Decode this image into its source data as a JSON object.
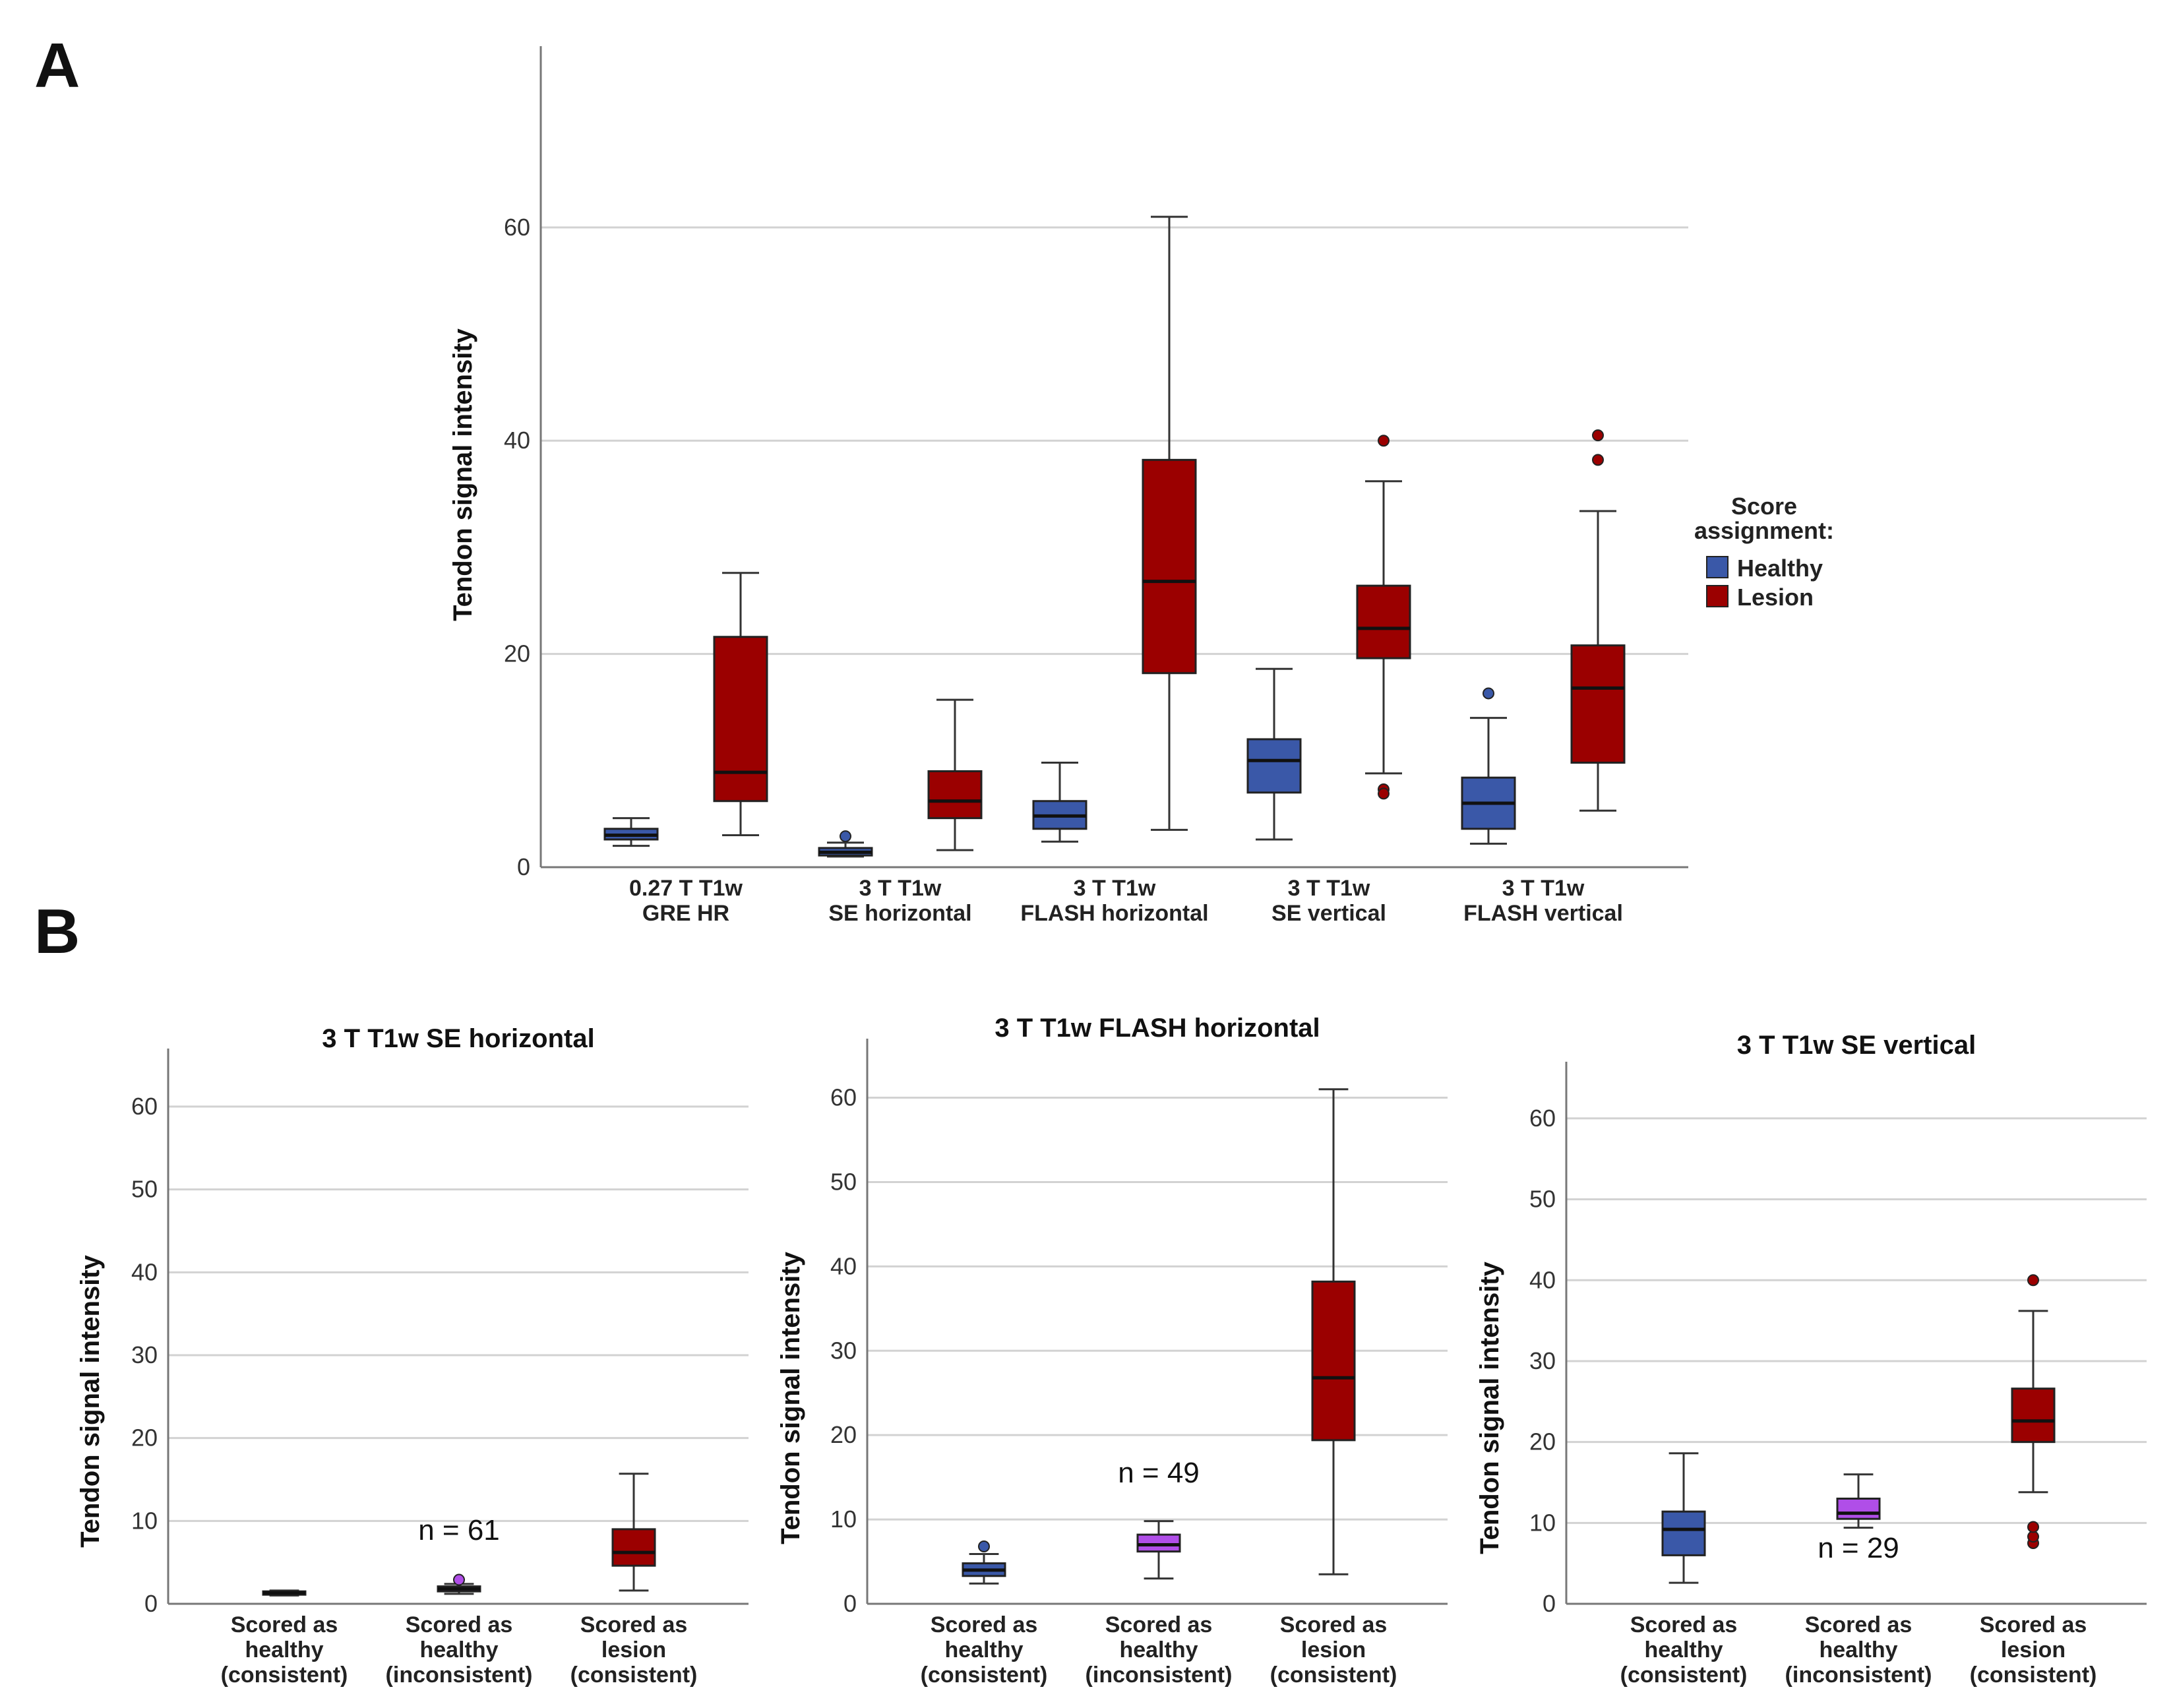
{
  "labels": {
    "panel_a": "A",
    "panel_b": "B"
  },
  "colors": {
    "healthy": "#3a58a8",
    "lesion": "#9b0000",
    "inconsistent": "#b04ee8"
  },
  "legend": {
    "title_line1": "Score",
    "title_line2": "assignment:",
    "healthy": "Healthy",
    "lesion": "Lesion"
  },
  "chart_data": [
    {
      "type": "boxplot",
      "id": "A",
      "title": "",
      "xlabel": "",
      "ylabel": "Tendon signal intensity",
      "ylim": [
        0,
        77
      ],
      "yticks": [
        0,
        20,
        40,
        60
      ],
      "grid": true,
      "legend_position": "right",
      "categories": [
        [
          "0.27 T T1w",
          "GRE HR"
        ],
        [
          "3 T T1w",
          "SE horizontal"
        ],
        [
          "3 T T1w",
          "FLASH horizontal"
        ],
        [
          "3 T T1w",
          "SE vertical"
        ],
        [
          "3 T T1w",
          "FLASH vertical"
        ]
      ],
      "series": [
        {
          "name": "Healthy",
          "color_key": "healthy",
          "boxes": [
            {
              "min": 2.0,
              "q1": 2.6,
              "median": 3.0,
              "q3": 3.6,
              "max": 4.6,
              "outliers": []
            },
            {
              "min": 1.0,
              "q1": 1.1,
              "median": 1.4,
              "q3": 1.8,
              "max": 2.3,
              "outliers": [
                2.9
              ]
            },
            {
              "min": 2.4,
              "q1": 3.6,
              "median": 4.8,
              "q3": 6.2,
              "max": 9.8,
              "outliers": []
            },
            {
              "min": 2.6,
              "q1": 7.0,
              "median": 10.0,
              "q3": 12.0,
              "max": 18.6,
              "outliers": []
            },
            {
              "min": 2.2,
              "q1": 3.6,
              "median": 6.0,
              "q3": 8.4,
              "max": 14.0,
              "outliers": [
                16.3
              ]
            }
          ]
        },
        {
          "name": "Lesion",
          "color_key": "lesion",
          "boxes": [
            {
              "min": 3.0,
              "q1": 6.2,
              "median": 8.9,
              "q3": 21.6,
              "max": 27.6,
              "outliers": []
            },
            {
              "min": 1.6,
              "q1": 4.6,
              "median": 6.2,
              "q3": 9.0,
              "max": 15.7,
              "outliers": []
            },
            {
              "min": 3.5,
              "q1": 18.2,
              "median": 26.8,
              "q3": 38.2,
              "max": 61.0,
              "outliers": []
            },
            {
              "min": 8.8,
              "q1": 19.6,
              "median": 22.4,
              "q3": 26.4,
              "max": 36.2,
              "outliers": [
                7.3,
                6.9,
                40.0
              ]
            },
            {
              "min": 5.3,
              "q1": 9.8,
              "median": 16.8,
              "q3": 20.8,
              "max": 33.4,
              "outliers": [
                38.2,
                40.5
              ]
            }
          ]
        }
      ]
    },
    {
      "type": "boxplot",
      "id": "B1",
      "title": "3 T T1w SE horizontal",
      "xlabel": "",
      "ylabel": "Tendon signal intensity",
      "ylim": [
        0,
        67
      ],
      "yticks": [
        0,
        10,
        20,
        30,
        40,
        50,
        60
      ],
      "grid": true,
      "annotation": {
        "text": "n = 61",
        "x_index": 1,
        "y": 7.7
      },
      "categories": [
        [
          "Scored as",
          "healthy",
          "(consistent)"
        ],
        [
          "Scored as",
          "healthy",
          "(inconsistent)"
        ],
        [
          "Scored as",
          "lesion",
          "(consistent)"
        ]
      ],
      "boxes": [
        {
          "color_key": "healthy",
          "min": 1.0,
          "q1": 1.1,
          "median": 1.3,
          "q3": 1.5,
          "max": 1.6,
          "outliers": []
        },
        {
          "color_key": "inconsistent",
          "min": 1.2,
          "q1": 1.5,
          "median": 1.8,
          "q3": 2.1,
          "max": 2.4,
          "outliers": [
            2.9
          ]
        },
        {
          "color_key": "lesion",
          "min": 1.6,
          "q1": 4.6,
          "median": 6.2,
          "q3": 9.0,
          "max": 15.7,
          "outliers": []
        }
      ]
    },
    {
      "type": "boxplot",
      "id": "B2",
      "title": "3 T T1w FLASH horizontal",
      "xlabel": "",
      "ylabel": "Tendon signal intensity",
      "ylim": [
        0,
        67
      ],
      "yticks": [
        0,
        10,
        20,
        30,
        40,
        50,
        60
      ],
      "grid": true,
      "annotation": {
        "text": "n = 49",
        "x_index": 1,
        "y": 14.4
      },
      "categories": [
        [
          "Scored as",
          "healthy",
          "(consistent)"
        ],
        [
          "Scored as",
          "healthy",
          "(inconsistent)"
        ],
        [
          "Scored as",
          "lesion",
          "(consistent)"
        ]
      ],
      "boxes": [
        {
          "color_key": "healthy",
          "min": 2.4,
          "q1": 3.3,
          "median": 4.0,
          "q3": 4.8,
          "max": 5.9,
          "outliers": [
            6.8
          ]
        },
        {
          "color_key": "inconsistent",
          "min": 3.0,
          "q1": 6.2,
          "median": 7.0,
          "q3": 8.2,
          "max": 9.8,
          "outliers": []
        },
        {
          "color_key": "lesion",
          "min": 3.5,
          "q1": 19.4,
          "median": 26.8,
          "q3": 38.2,
          "max": 61.0,
          "outliers": []
        }
      ]
    },
    {
      "type": "boxplot",
      "id": "B3",
      "title": "3 T T1w SE vertical",
      "xlabel": "",
      "ylabel": "Tendon signal intensity",
      "ylim": [
        0,
        67
      ],
      "yticks": [
        0,
        10,
        20,
        30,
        40,
        50,
        60
      ],
      "grid": true,
      "annotation": {
        "text": "n = 29",
        "x_index": 1,
        "y": 5.7
      },
      "categories": [
        [
          "Scored as",
          "healthy",
          "(consistent)"
        ],
        [
          "Scored as",
          "healthy",
          "(inconsistent)"
        ],
        [
          "Scored as",
          "lesion",
          "(consistent)"
        ]
      ],
      "boxes": [
        {
          "color_key": "healthy",
          "min": 2.6,
          "q1": 6.0,
          "median": 9.2,
          "q3": 11.4,
          "max": 18.6,
          "outliers": []
        },
        {
          "color_key": "inconsistent",
          "min": 9.4,
          "q1": 10.5,
          "median": 11.2,
          "q3": 13.0,
          "max": 16.0,
          "outliers": []
        },
        {
          "color_key": "lesion",
          "min": 13.8,
          "q1": 20.0,
          "median": 22.6,
          "q3": 26.6,
          "max": 36.2,
          "outliers": [
            7.5,
            8.3,
            9.5,
            40.0
          ]
        }
      ]
    }
  ]
}
